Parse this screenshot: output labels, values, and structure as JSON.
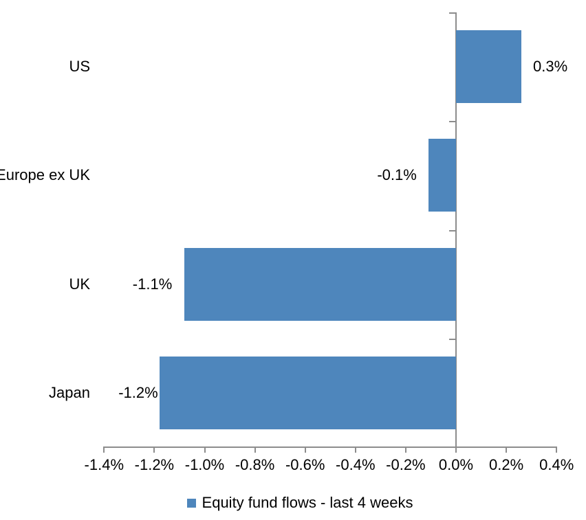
{
  "chart_data": {
    "type": "bar",
    "orientation": "horizontal",
    "title": "",
    "xlabel": "",
    "ylabel": "",
    "grid": false,
    "categories": [
      "US",
      "Europe ex UK",
      "UK",
      "Japan"
    ],
    "series": [
      {
        "name": "Equity fund flows - last 4 weeks",
        "values": [
          0.26,
          -0.11,
          -1.08,
          -1.18
        ],
        "data_labels": [
          "0.3%",
          "-0.1%",
          "-1.1%",
          "-1.2%"
        ]
      }
    ],
    "x_axis": {
      "min_pct": -1.4,
      "max_pct": 0.4,
      "step_pct": 0.2,
      "tick_labels": [
        "-1.4%",
        "-1.2%",
        "-1.0%",
        "-0.8%",
        "-0.6%",
        "-0.4%",
        "-0.2%",
        "0.0%",
        "0.2%",
        "0.4%"
      ]
    },
    "legend": {
      "position": "bottom",
      "entries": [
        "Equity fund flows - last 4 weeks"
      ]
    },
    "colors": {
      "bar": "#4E86BC",
      "axis": "#8C8C8C",
      "text": "#000000",
      "background": "#FFFFFF"
    }
  }
}
